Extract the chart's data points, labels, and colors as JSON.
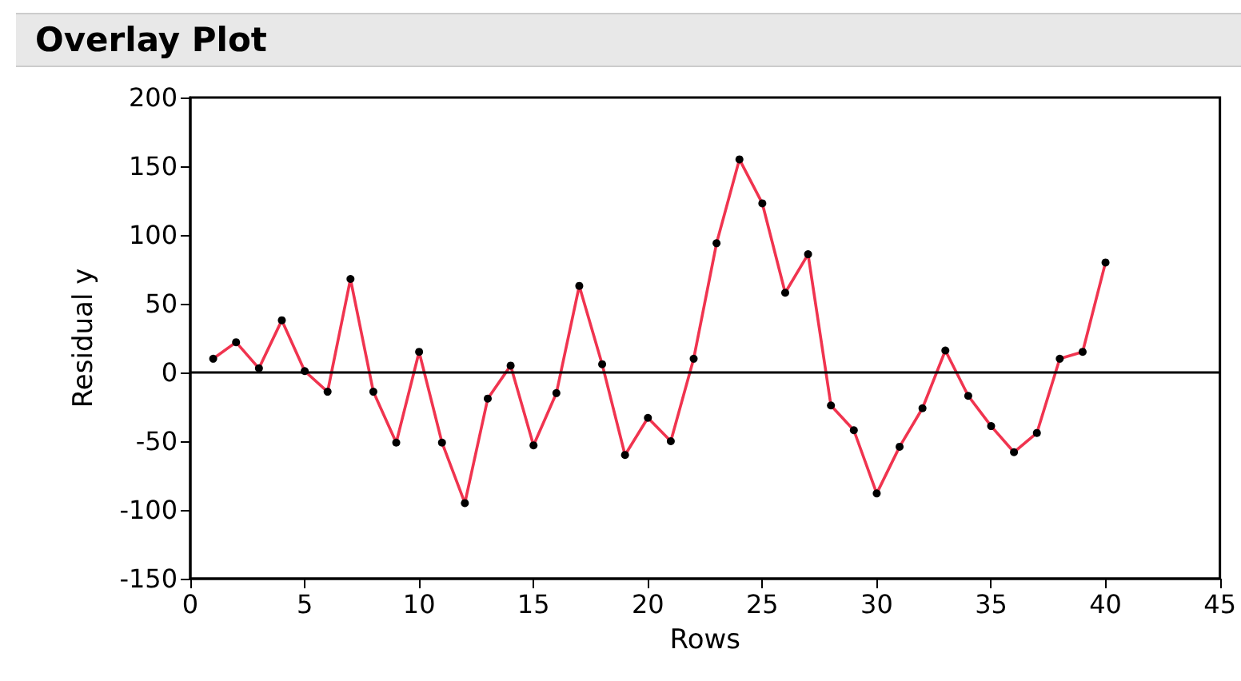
{
  "chart_data": {
    "type": "line",
    "title": "Overlay Plot",
    "xlabel": "Rows",
    "ylabel": "Residual y",
    "x": [
      1,
      2,
      3,
      4,
      5,
      6,
      7,
      8,
      9,
      10,
      11,
      12,
      13,
      14,
      15,
      16,
      17,
      18,
      19,
      20,
      21,
      22,
      23,
      24,
      25,
      26,
      27,
      28,
      29,
      30,
      31,
      32,
      33,
      34,
      35,
      36,
      37,
      38,
      39,
      40
    ],
    "series": [
      {
        "color": "#f0344f",
        "values": [
          10,
          22,
          3,
          38,
          1,
          -14,
          68,
          -14,
          -51,
          15,
          -51,
          -95,
          -19,
          5,
          -53,
          -15,
          63,
          6,
          -60,
          -33,
          -50,
          10,
          94,
          155,
          123,
          58,
          86,
          -24,
          -42,
          -88,
          -54,
          -26,
          16,
          -17,
          -39,
          -58,
          -44,
          10,
          15,
          80
        ]
      }
    ],
    "xlim": [
      0,
      45
    ],
    "xticks": [
      0,
      5,
      10,
      15,
      20,
      25,
      30,
      35,
      40,
      45
    ],
    "ylim": [
      -150,
      200
    ],
    "yticks": [
      -150,
      -100,
      -50,
      0,
      50,
      100,
      150,
      200
    ],
    "ref_lines": [
      {
        "axis": "y",
        "value": 0,
        "color": "#000000"
      }
    ],
    "marker": "circle",
    "line_style": "solid",
    "grid": false
  }
}
